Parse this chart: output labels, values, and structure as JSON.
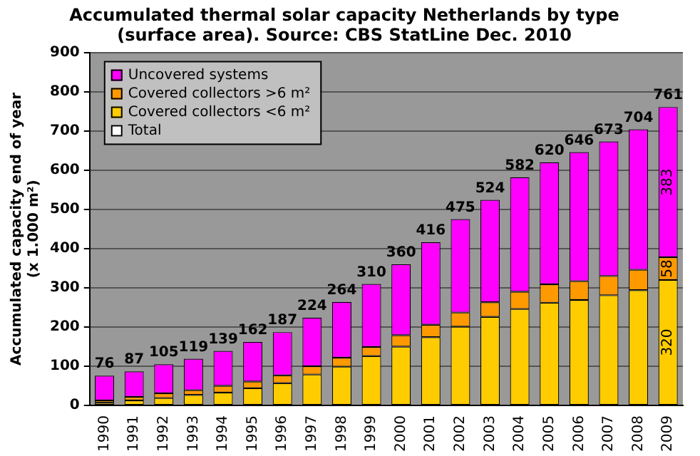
{
  "chart_data": {
    "type": "bar",
    "title": "Accumulated thermal solar capacity Netherlands by type\n(surface area). Source: CBS StatLine Dec. 2010",
    "ylabel": "Accumulated capacity end of year\n(x 1.000 m²)",
    "categories": [
      "1990",
      "1991",
      "1992",
      "1993",
      "1994",
      "1995",
      "1996",
      "1997",
      "1998",
      "1999",
      "2000",
      "2001",
      "2002",
      "2003",
      "2004",
      "2005",
      "2006",
      "2007",
      "2008",
      "2009"
    ],
    "stacked": true,
    "series": [
      {
        "name": "Total",
        "color": "#ffffff",
        "values": [
          null,
          null,
          null,
          null,
          null,
          null,
          null,
          null,
          null,
          null,
          null,
          null,
          null,
          null,
          null,
          null,
          null,
          null,
          null,
          null
        ]
      },
      {
        "name": "Covered collectors <6 m²",
        "color": "#ffcc00",
        "values": [
          7,
          13,
          19,
          27,
          33,
          44,
          57,
          79,
          99,
          126,
          150,
          174,
          201,
          226,
          246,
          262,
          269,
          281,
          294,
          320
        ],
        "value_labels": [
          null,
          null,
          null,
          null,
          null,
          null,
          null,
          null,
          null,
          null,
          null,
          null,
          null,
          null,
          null,
          null,
          null,
          null,
          null,
          "320"
        ]
      },
      {
        "name": "Covered collectors >6 m²",
        "color": "#ff9900",
        "values": [
          6,
          9,
          12,
          12,
          17,
          17,
          20,
          21,
          23,
          23,
          29,
          32,
          36,
          37,
          44,
          47,
          48,
          49,
          52,
          58
        ],
        "value_labels": [
          null,
          null,
          null,
          null,
          null,
          null,
          null,
          null,
          null,
          null,
          null,
          null,
          null,
          null,
          null,
          null,
          null,
          null,
          null,
          "58"
        ]
      },
      {
        "name": "Uncovered systems",
        "color": "#ff00ff",
        "values": [
          63,
          65,
          74,
          80,
          89,
          101,
          110,
          124,
          142,
          161,
          181,
          210,
          238,
          261,
          292,
          311,
          329,
          343,
          358,
          383
        ],
        "value_labels": [
          null,
          null,
          null,
          null,
          null,
          null,
          null,
          null,
          null,
          null,
          null,
          null,
          null,
          null,
          null,
          null,
          null,
          null,
          null,
          "383"
        ]
      }
    ],
    "totals": [
      "76",
      "87",
      "105",
      "119",
      "139",
      "162",
      "187",
      "224",
      "264",
      "310",
      "360",
      "416",
      "475",
      "524",
      "582",
      "620",
      "646",
      "673",
      "704",
      "761"
    ],
    "ylim": [
      0,
      900
    ],
    "yticks": [
      0,
      100,
      200,
      300,
      400,
      500,
      600,
      700,
      800,
      900
    ],
    "grid": "y",
    "legend": "top left"
  }
}
